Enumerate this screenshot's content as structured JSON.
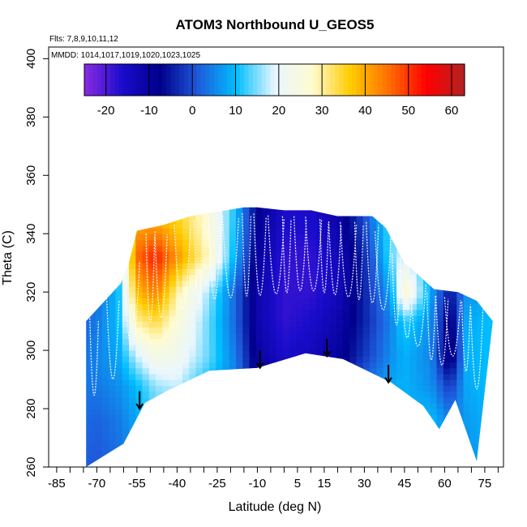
{
  "chart_data": {
    "type": "heatmap",
    "title": "ATOM3 Northbound U_GEOS5",
    "annotations": {
      "flights": "Flts: 7,8,9,10,11,12",
      "dates": "MMDD: 1014,1017,1019,1020,1023,1025"
    },
    "xlabel": "Latitude (deg N)",
    "ylabel": "Theta (C)",
    "xlim": [
      -88,
      82
    ],
    "ylim": [
      260,
      404
    ],
    "x_ticks": [
      -85,
      -70,
      -55,
      -40,
      -25,
      -10,
      5,
      15,
      30,
      45,
      60,
      75
    ],
    "x_tick_labels": [
      "-85",
      "-70",
      "-55",
      "-40",
      "-25",
      "-10",
      "5",
      "15",
      "30",
      "45",
      "60",
      "75"
    ],
    "y_ticks": [
      260,
      280,
      300,
      320,
      340,
      360,
      380,
      400
    ],
    "y_tick_labels": [
      "260",
      "280",
      "300",
      "320",
      "340",
      "360",
      "380",
      "400"
    ],
    "colorbar": {
      "min": -25,
      "max": 63,
      "ticks": [
        -20,
        -10,
        0,
        10,
        20,
        30,
        40,
        50,
        60
      ],
      "tick_labels": [
        "-20",
        "-10",
        "0",
        "10",
        "20",
        "30",
        "40",
        "50",
        "60"
      ],
      "palette": [
        "#8a2be2",
        "#1a0ccc",
        "#00008b",
        "#1e5bdc",
        "#00bfff",
        "#e8f6ff",
        "#fffbd0",
        "#ffcc00",
        "#ff7000",
        "#ff0000",
        "#b22222"
      ]
    },
    "surface_boundary": {
      "lat": [
        -74,
        -60,
        -52,
        -44,
        -28,
        -10,
        8,
        22,
        40,
        52,
        58,
        64,
        72
      ],
      "theta": [
        260,
        268,
        282,
        286,
        293,
        294,
        299,
        297,
        289,
        281,
        273,
        283,
        262
      ]
    },
    "top_boundary": {
      "lat": [
        -74,
        -66,
        -61,
        -58,
        -55,
        -45,
        -35,
        -15,
        -10,
        0,
        10,
        20,
        33,
        38,
        45,
        50,
        56,
        65,
        72,
        78
      ],
      "theta": [
        310,
        318,
        323,
        330,
        341,
        343,
        346,
        349,
        349,
        348,
        348,
        346,
        346,
        342,
        330,
        326,
        321,
        320,
        317,
        310
      ]
    },
    "u_field": {
      "lat": [
        -76,
        -70,
        -62,
        -55,
        -48,
        -40,
        -28,
        -18,
        -10,
        0,
        10,
        20,
        30,
        40,
        45,
        55,
        62,
        68,
        76
      ],
      "theta": [
        262,
        276,
        288,
        298,
        310,
        320,
        332,
        344
      ],
      "values": [
        [
          2,
          1,
          3,
          6,
          8,
          5,
          3,
          2,
          1,
          0,
          0,
          1,
          4,
          6,
          7,
          8,
          4,
          6,
          8
        ],
        [
          3,
          2,
          4,
          8,
          12,
          10,
          6,
          4,
          2,
          0,
          0,
          2,
          5,
          8,
          9,
          10,
          5,
          7,
          9
        ],
        [
          4,
          4,
          6,
          10,
          16,
          18,
          10,
          5,
          -8,
          -10,
          -6,
          -4,
          3,
          8,
          9,
          6,
          -2,
          8,
          10
        ],
        [
          3,
          5,
          8,
          18,
          24,
          22,
          14,
          4,
          -10,
          -16,
          -14,
          -10,
          -2,
          6,
          9,
          5,
          -12,
          9,
          10
        ],
        [
          2,
          4,
          10,
          30,
          34,
          26,
          14,
          2,
          -12,
          -18,
          -16,
          -12,
          -4,
          5,
          12,
          6,
          -10,
          8,
          10
        ],
        [
          2,
          3,
          10,
          38,
          44,
          30,
          16,
          2,
          -12,
          -18,
          -18,
          -14,
          -4,
          8,
          28,
          8,
          -6,
          6,
          8
        ],
        [
          2,
          3,
          12,
          46,
          52,
          42,
          28,
          8,
          -10,
          -18,
          -18,
          -14,
          -4,
          14,
          20,
          8,
          4,
          6,
          8
        ],
        [
          2,
          3,
          12,
          40,
          40,
          36,
          26,
          10,
          -8,
          -16,
          -16,
          -12,
          0,
          14,
          14,
          8,
          4,
          5,
          6
        ]
      ]
    },
    "arrows": [
      {
        "lat": -54,
        "theta_top": 286,
        "theta_tip": 280
      },
      {
        "lat": -9,
        "theta_top": 300,
        "theta_tip": 294
      },
      {
        "lat": 16,
        "theta_top": 304,
        "theta_tip": 298
      },
      {
        "lat": 39,
        "theta_top": 295,
        "theta_tip": 289
      }
    ]
  }
}
